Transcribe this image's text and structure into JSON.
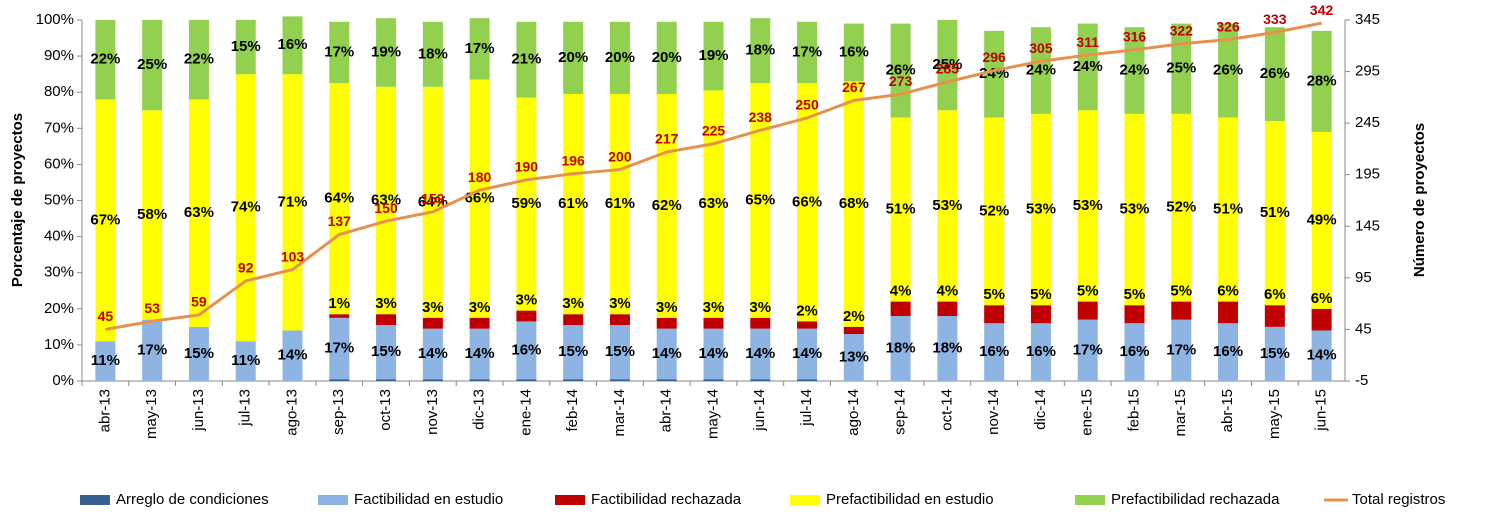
{
  "chart_data": {
    "type": "stacked_bar_line",
    "categories": [
      "abr-13",
      "may-13",
      "jun-13",
      "jul-13",
      "ago-13",
      "sep-13",
      "oct-13",
      "nov-13",
      "dic-13",
      "ene-14",
      "feb-14",
      "mar-14",
      "abr-14",
      "may-14",
      "jun-14",
      "jul-14",
      "ago-14",
      "sep-14",
      "oct-14",
      "nov-14",
      "dic-14",
      "ene-15",
      "feb-15",
      "mar-15",
      "abr-15",
      "may-15",
      "jun-15"
    ],
    "ylabel": "Porcentaje de proyectos",
    "y2label": "Número de proyectos",
    "ylim": [
      0,
      100
    ],
    "yticks": [
      {
        "value": 0,
        "label": "0%"
      },
      {
        "value": 10,
        "label": "10%"
      },
      {
        "value": 20,
        "label": "20%"
      },
      {
        "value": 30,
        "label": "30%"
      },
      {
        "value": 40,
        "label": "40%"
      },
      {
        "value": 50,
        "label": "50%"
      },
      {
        "value": 60,
        "label": "60%"
      },
      {
        "value": 70,
        "label": "70%"
      },
      {
        "value": 80,
        "label": "80%"
      },
      {
        "value": 90,
        "label": "90%"
      },
      {
        "value": 100,
        "label": "100%"
      }
    ],
    "y2lim": [
      -5,
      345
    ],
    "y2ticks": [
      -5,
      45,
      95,
      145,
      195,
      245,
      295,
      345
    ],
    "series": [
      {
        "name": "Arreglo de condiciones",
        "color": "#366092",
        "values": [
          0,
          0,
          0,
          0,
          0,
          0.5,
          0.5,
          0.5,
          0.5,
          0.5,
          0.5,
          0.5,
          0.5,
          0.5,
          0.5,
          0.5,
          0,
          0,
          0,
          0,
          0,
          0,
          0,
          0,
          0,
          0,
          0
        ]
      },
      {
        "name": "Factibilidad en estudio",
        "color": "#8db4e2",
        "values": [
          11,
          17,
          15,
          11,
          14,
          17,
          15,
          14,
          14,
          16,
          15,
          15,
          14,
          14,
          14,
          14,
          13,
          18,
          18,
          16,
          16,
          17,
          16,
          17,
          16,
          15,
          14
        ],
        "value_labels": [
          "11%",
          "17%",
          "15%",
          "11%",
          "14%",
          "17%",
          "15%",
          "14%",
          "14%",
          "16%",
          "15%",
          "15%",
          "14%",
          "14%",
          "14%",
          "14%",
          "13%",
          "18%",
          "18%",
          "16%",
          "16%",
          "17%",
          "16%",
          "17%",
          "16%",
          "15%",
          "14%"
        ]
      },
      {
        "name": "Factibilidad rechazada",
        "color": "#c00000",
        "values": [
          0,
          0,
          0,
          0,
          0,
          1,
          3,
          3,
          3,
          3,
          3,
          3,
          3,
          3,
          3,
          2,
          2,
          4,
          4,
          5,
          5,
          5,
          5,
          5,
          6,
          6,
          6
        ],
        "value_labels": [
          null,
          null,
          null,
          null,
          null,
          "1%",
          "3%",
          "3%",
          "3%",
          "3%",
          "3%",
          "3%",
          "3%",
          "3%",
          "3%",
          "2%",
          "2%",
          "4%",
          "4%",
          "5%",
          "5%",
          "5%",
          "5%",
          "5%",
          "6%",
          "6%",
          "6%"
        ]
      },
      {
        "name": "Prefactibilidad en estudio",
        "color": "#ffff00",
        "values": [
          67,
          58,
          63,
          74,
          71,
          64,
          63,
          64,
          66,
          59,
          61,
          61,
          62,
          63,
          65,
          66,
          68,
          51,
          53,
          52,
          53,
          53,
          53,
          52,
          51,
          51,
          49
        ],
        "value_labels": [
          "67%",
          "58%",
          "63%",
          "74%",
          "71%",
          "64%",
          "63%",
          "64%",
          "66%",
          "59%",
          "61%",
          "61%",
          "62%",
          "63%",
          "65%",
          "66%",
          "68%",
          "51%",
          "53%",
          "52%",
          "53%",
          "53%",
          "53%",
          "52%",
          "51%",
          "51%",
          "49%"
        ]
      },
      {
        "name": "Prefactibilidad rechazada",
        "color": "#92d050",
        "values": [
          22,
          25,
          22,
          15,
          16,
          17,
          19,
          18,
          17,
          21,
          20,
          20,
          20,
          19,
          18,
          17,
          16,
          26,
          25,
          24,
          24,
          24,
          24,
          25,
          26,
          26,
          28
        ],
        "value_labels": [
          "22%",
          "25%",
          "22%",
          "15%",
          "16%",
          "17%",
          "19%",
          "18%",
          "17%",
          "21%",
          "20%",
          "20%",
          "20%",
          "19%",
          "18%",
          "17%",
          "16%",
          "26%",
          "25%",
          "24%",
          "24%",
          "24%",
          "24%",
          "25%",
          "26%",
          "26%",
          "28%"
        ]
      },
      {
        "name": "Total registros",
        "color": "#e6914d",
        "axis": "y2",
        "values": [
          45,
          53,
          59,
          92,
          103,
          137,
          150,
          159,
          180,
          190,
          196,
          200,
          217,
          225,
          238,
          250,
          267,
          273,
          285,
          296,
          305,
          311,
          316,
          322,
          326,
          333,
          342
        ]
      }
    ]
  }
}
